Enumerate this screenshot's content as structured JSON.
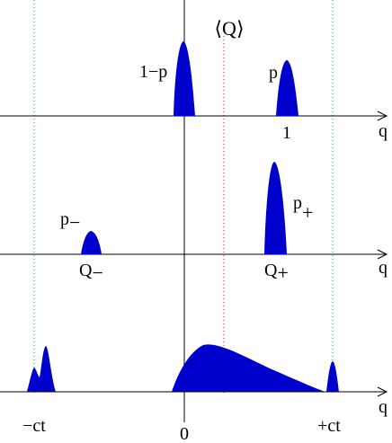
{
  "title": "⟨Q⟩",
  "axis_label": "q",
  "colors": {
    "fill": "#0000CC",
    "axis": "#000000",
    "green_guide": "#2E8B57",
    "red_guide": "#CC2222"
  },
  "panels": [
    {
      "id": "top",
      "labels": {
        "left_peak": "1−p",
        "right_peak": "p",
        "right_tick": "1"
      }
    },
    {
      "id": "middle",
      "labels": {
        "left_peak": "p",
        "left_peak_sub": "−",
        "right_peak": "p",
        "right_peak_sub": "+",
        "left_pos": "Q",
        "left_pos_sub": "−",
        "right_pos": "Q",
        "right_pos_sub": "+"
      }
    },
    {
      "id": "bottom",
      "labels": {
        "left_pos": "−ct",
        "center_pos": "0",
        "right_pos": "+ct"
      }
    }
  ]
}
